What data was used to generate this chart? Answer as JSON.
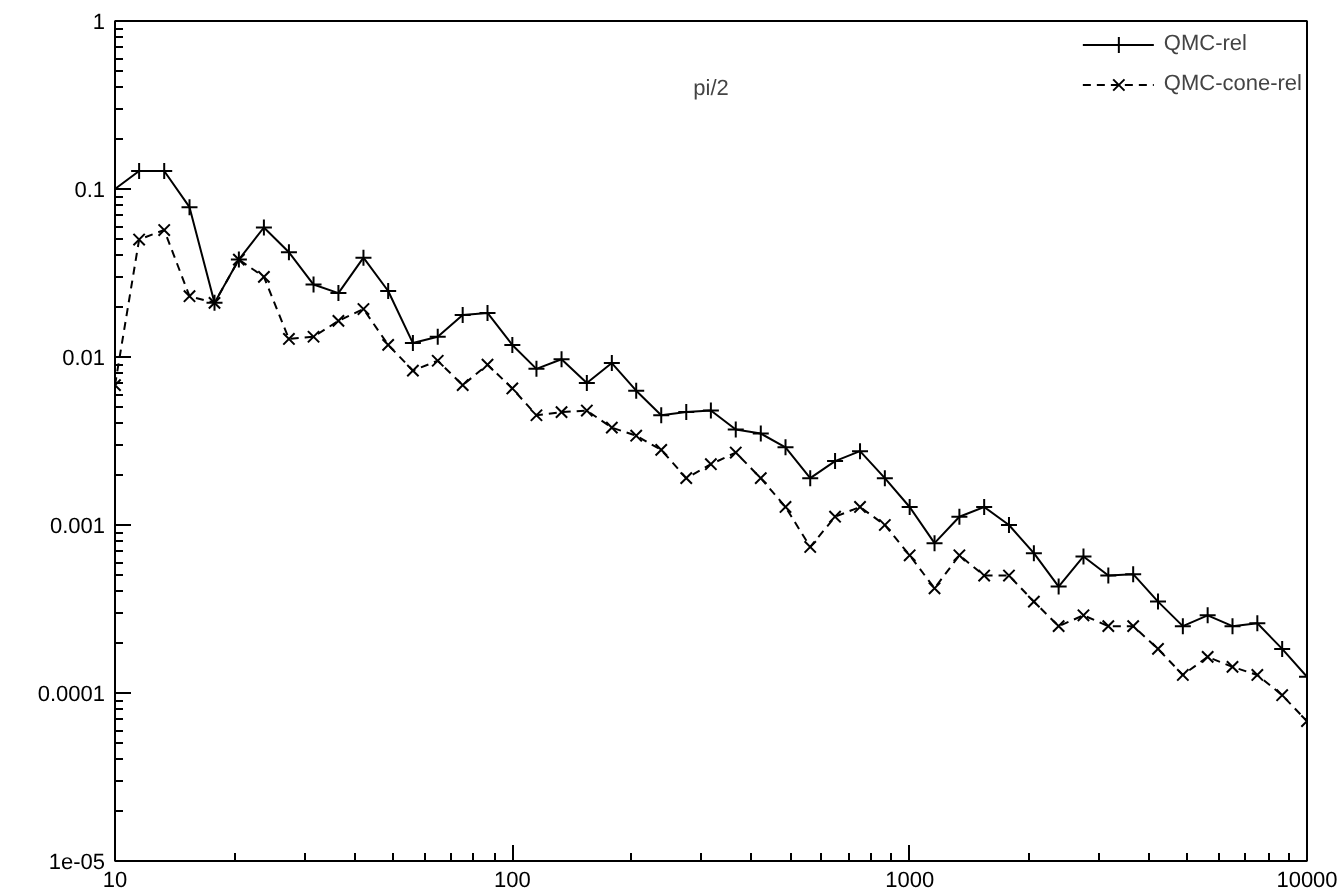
{
  "chart_data": {
    "type": "line",
    "title": "pi/2",
    "x": [
      10,
      11.5,
      13.3,
      15.4,
      17.8,
      20.5,
      23.7,
      27.4,
      31.6,
      36.5,
      42.2,
      48.7,
      56.2,
      64.9,
      75,
      86.6,
      100,
      115,
      133,
      154,
      178,
      205,
      237,
      274,
      316,
      365,
      422,
      487,
      562,
      649,
      750,
      866,
      1000,
      1155,
      1334,
      1540,
      1778,
      2054,
      2371,
      2738,
      3162,
      3652,
      4217,
      4870,
      5623,
      6494,
      7499,
      8660,
      10000
    ],
    "series": [
      {
        "name": "QMC-rel",
        "color": "#000000",
        "marker": "cross",
        "line_style": "solid",
        "values": [
          0.1,
          0.128,
          0.128,
          0.078,
          0.021,
          0.038,
          0.059,
          0.042,
          0.027,
          0.024,
          0.039,
          0.0247,
          0.0121,
          0.0132,
          0.0178,
          0.0183,
          0.0118,
          0.0085,
          0.0097,
          0.007,
          0.0092,
          0.0063,
          0.0045,
          0.0047,
          0.0048,
          0.0037,
          0.0035,
          0.0029,
          0.0019,
          0.0024,
          0.00275,
          0.0019,
          0.00128,
          0.00078,
          0.00112,
          0.00128,
          0.001,
          0.00068,
          0.00043,
          0.00065,
          0.0005,
          0.00051,
          0.00035,
          0.00025,
          0.00029,
          0.00025,
          0.00026,
          0.000183,
          0.000125
        ]
      },
      {
        "name": "QMC-cone-rel",
        "color": "#000000",
        "marker": "x",
        "line_style": "dashed",
        "values": [
          0.0068,
          0.05,
          0.057,
          0.023,
          0.021,
          0.038,
          0.03,
          0.0128,
          0.0132,
          0.0164,
          0.0193,
          0.0118,
          0.0083,
          0.0095,
          0.0068,
          0.009,
          0.0065,
          0.0045,
          0.0047,
          0.0048,
          0.0038,
          0.0034,
          0.0028,
          0.0019,
          0.0023,
          0.0027,
          0.0019,
          0.00128,
          0.00074,
          0.00112,
          0.00128,
          0.001,
          0.00066,
          0.00042,
          0.00066,
          0.0005,
          0.0005,
          0.00035,
          0.00025,
          0.00029,
          0.00025,
          0.00025,
          0.000183,
          0.000128,
          0.000164,
          0.000143,
          0.000128,
          9.7e-05,
          6.8e-05
        ]
      }
    ],
    "log": "xy",
    "xlim": [
      10,
      10000
    ],
    "ylim": [
      1e-05,
      1
    ],
    "xticks": [
      10,
      100,
      1000,
      10000
    ],
    "yticks": [
      {
        "value": 1e-05,
        "label": "1e-05"
      },
      0.0001,
      0.001,
      0.01,
      0.1,
      1
    ],
    "grid": false,
    "legend": "top right"
  }
}
